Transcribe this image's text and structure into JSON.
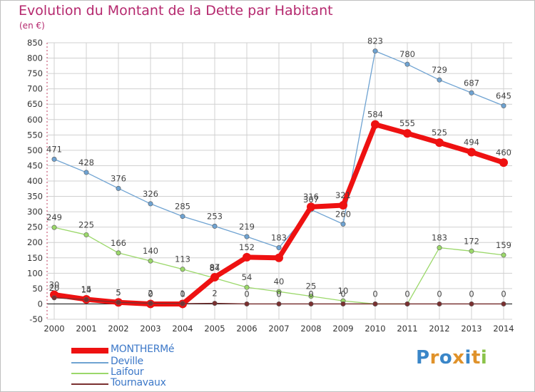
{
  "title": "Evolution du Montant de la Dette par Habitant",
  "unit_note": "(en €)",
  "brand": {
    "p": "P",
    "r": "r",
    "o": "o",
    "x": "x",
    "i": "i",
    "t": "t",
    "i2": "i"
  },
  "colors": {
    "title": "#b5286e",
    "axis_text": "#333333",
    "grid": "#c8c8c8",
    "monthermé": "#ee1111",
    "deville": "#6fa3d2",
    "laifour": "#9bd86a",
    "tournavaux": "#7a3030"
  },
  "chart_data": {
    "type": "line",
    "title": "Evolution du Montant de la Dette par Habitant",
    "ylabel": "(en €)",
    "xlabel": "",
    "x": [
      2000,
      2001,
      2002,
      2003,
      2004,
      2005,
      2006,
      2007,
      2008,
      2009,
      2010,
      2011,
      2012,
      2013,
      2014
    ],
    "ylim": [
      -50,
      850
    ],
    "yticks": [
      -50,
      0,
      50,
      100,
      150,
      200,
      250,
      300,
      350,
      400,
      450,
      500,
      550,
      600,
      650,
      700,
      750,
      800,
      850
    ],
    "grid": true,
    "legend_position": "bottom-left",
    "series": [
      {
        "name": "MONTHERMé",
        "color": "#ee1111",
        "width": 7,
        "values": [
          30,
          15,
          5,
          0,
          0,
          87,
          152,
          150,
          316,
          321,
          584,
          555,
          525,
          494,
          460
        ],
        "labels": [
          "30",
          "15",
          "5",
          "0",
          "0",
          "87",
          "152",
          "",
          "316",
          "321",
          "584",
          "555",
          "525",
          "494",
          "460"
        ]
      },
      {
        "name": "Deville",
        "color": "#6fa3d2",
        "width": 1.3,
        "values": [
          471,
          428,
          376,
          326,
          285,
          253,
          219,
          183,
          307,
          260,
          823,
          780,
          729,
          687,
          645
        ],
        "labels": [
          "471",
          "428",
          "376",
          "326",
          "285",
          "253",
          "219",
          "183",
          "307",
          "260",
          "823",
          "780",
          "729",
          "687",
          "645"
        ]
      },
      {
        "name": "Laifour",
        "color": "#9bd86a",
        "width": 1.3,
        "values": [
          249,
          225,
          166,
          140,
          113,
          84,
          54,
          40,
          25,
          10,
          0,
          0,
          183,
          172,
          159
        ],
        "labels": [
          "249",
          "225",
          "166",
          "140",
          "113",
          "84",
          "54",
          "40",
          "25",
          "10",
          "",
          "",
          "183",
          "172",
          "159"
        ]
      },
      {
        "name": "Tournavaux",
        "color": "#7a3030",
        "width": 1.3,
        "values": [
          20,
          14,
          5,
          2,
          1,
          2,
          0,
          0,
          0,
          0,
          0,
          0,
          0,
          0,
          0
        ],
        "labels": [
          "20",
          "14",
          "5",
          "2",
          "1",
          "2",
          "0",
          "0",
          "0",
          "0",
          "0",
          "0",
          "0",
          "0",
          "0"
        ]
      }
    ]
  }
}
